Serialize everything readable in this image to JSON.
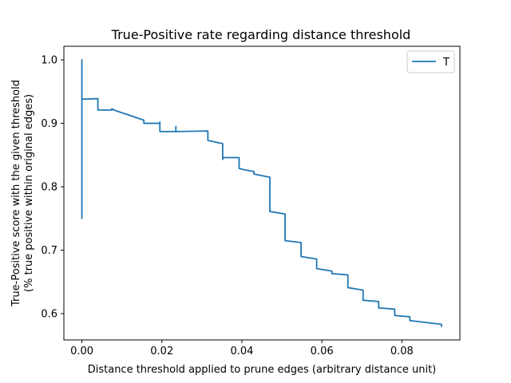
{
  "chart_data": {
    "type": "line",
    "title": "True-Positive rate regarding distance threshold",
    "xlabel": "Distance threshold applied to prune edges (arbitrary distance unit)",
    "ylabel_line1": "True-Positive score with the given threshold",
    "ylabel_line2": "(% true positive within original edges)",
    "xlim": [
      -0.0045,
      0.0945
    ],
    "ylim": [
      0.5585,
      1.0215
    ],
    "x_ticks": [
      0.0,
      0.02,
      0.04,
      0.06,
      0.08
    ],
    "x_tick_labels": [
      "0.00",
      "0.02",
      "0.04",
      "0.06",
      "0.08"
    ],
    "y_ticks": [
      0.6,
      0.7,
      0.8,
      0.9,
      1.0
    ],
    "y_tick_labels": [
      "0.6",
      "0.7",
      "0.8",
      "0.9",
      "1.0"
    ],
    "grid": false,
    "legend_position": "top-right",
    "series": [
      {
        "name": "T",
        "color": "#1f77b4",
        "x": [
          0.0,
          0.0,
          0.0,
          0.0,
          0.0,
          0.0001,
          0.0001,
          0.0001,
          0.004,
          0.004,
          0.0075,
          0.0075,
          0.008,
          0.0155,
          0.0155,
          0.0195,
          0.0195,
          0.0195,
          0.0235,
          0.0235,
          0.0235,
          0.0315,
          0.0315,
          0.0352,
          0.0352,
          0.0353,
          0.0393,
          0.0393,
          0.0393,
          0.0405,
          0.043,
          0.043,
          0.047,
          0.047,
          0.0508,
          0.0508,
          0.0548,
          0.0548,
          0.0587,
          0.0587,
          0.0625,
          0.0625,
          0.0665,
          0.0665,
          0.0703,
          0.0703,
          0.0742,
          0.0742,
          0.0782,
          0.0782,
          0.082,
          0.082,
          0.0899,
          0.0899
        ],
        "y": [
          1.0,
          0.75,
          0.94,
          0.75,
          0.94,
          0.939,
          0.938,
          0.938,
          0.939,
          0.921,
          0.921,
          0.923,
          0.921,
          0.905,
          0.9,
          0.9,
          0.902,
          0.887,
          0.887,
          0.895,
          0.887,
          0.888,
          0.873,
          0.868,
          0.843,
          0.846,
          0.846,
          0.835,
          0.829,
          0.827,
          0.824,
          0.82,
          0.815,
          0.761,
          0.757,
          0.715,
          0.712,
          0.69,
          0.686,
          0.671,
          0.667,
          0.663,
          0.661,
          0.641,
          0.637,
          0.621,
          0.619,
          0.609,
          0.607,
          0.597,
          0.595,
          0.589,
          0.583,
          0.58
        ]
      }
    ]
  }
}
